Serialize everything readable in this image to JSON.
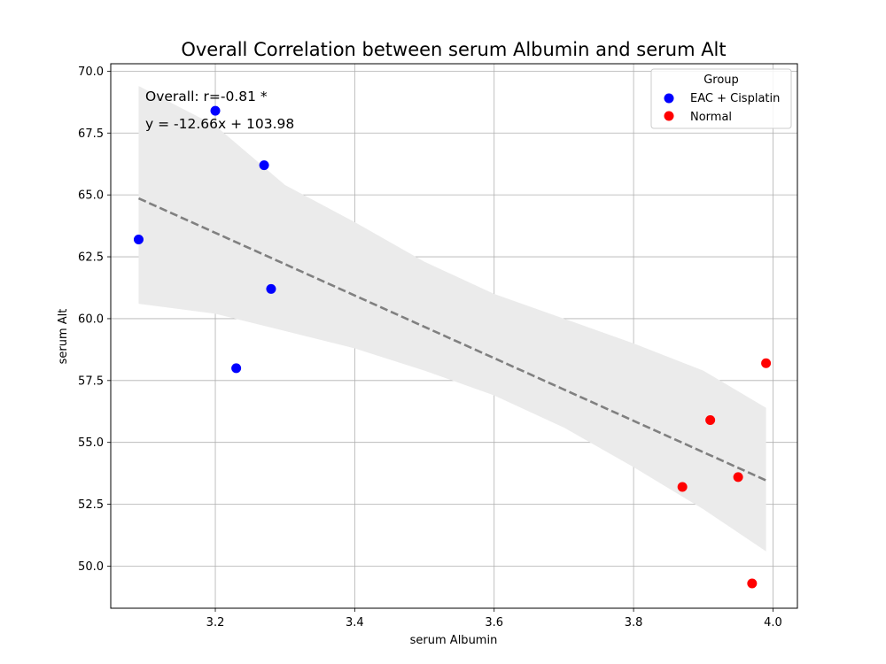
{
  "chart_data": {
    "type": "scatter",
    "title": "Overall Correlation between serum Albumin and serum Alt",
    "xlabel": "serum Albumin",
    "ylabel": "serum Alt",
    "xlim": [
      3.05,
      4.035
    ],
    "ylim": [
      48.3,
      70.3
    ],
    "xticks": [
      3.2,
      3.4,
      3.6,
      3.8,
      4.0
    ],
    "xtick_labels": [
      "3.2",
      "3.4",
      "3.6",
      "3.8",
      "4.0"
    ],
    "yticks": [
      50.0,
      52.5,
      55.0,
      57.5,
      60.0,
      62.5,
      65.0,
      67.5,
      70.0
    ],
    "ytick_labels": [
      "50.0",
      "52.5",
      "55.0",
      "57.5",
      "60.0",
      "62.5",
      "65.0",
      "67.5",
      "70.0"
    ],
    "grid": true,
    "legend": {
      "title": "Group",
      "placement": "top-right"
    },
    "series": [
      {
        "name": "EAC + Cisplatin",
        "color": "#0000ff",
        "points": [
          [
            3.09,
            63.2
          ],
          [
            3.2,
            68.4
          ],
          [
            3.23,
            58.0
          ],
          [
            3.27,
            66.2
          ],
          [
            3.28,
            61.2
          ]
        ]
      },
      {
        "name": "Normal",
        "color": "#ff0000",
        "points": [
          [
            3.87,
            53.2
          ],
          [
            3.91,
            55.9
          ],
          [
            3.95,
            53.6
          ],
          [
            3.97,
            49.3
          ],
          [
            3.99,
            58.2
          ]
        ]
      }
    ],
    "regression": {
      "slope": -12.66,
      "intercept": 103.98,
      "color": "#808080",
      "x_range": [
        3.09,
        3.99
      ],
      "ci_band": {
        "color": "#ebebeb",
        "x": [
          3.09,
          3.2,
          3.3,
          3.4,
          3.5,
          3.6,
          3.7,
          3.8,
          3.9,
          3.99
        ],
        "upper": [
          69.4,
          67.8,
          65.4,
          63.9,
          62.3,
          61.0,
          60.0,
          59.0,
          57.9,
          56.4
        ],
        "lower": [
          60.6,
          60.2,
          59.5,
          58.8,
          57.9,
          56.9,
          55.6,
          54.0,
          52.3,
          50.6
        ]
      }
    },
    "annotations": [
      "Overall: r=-0.81 *",
      "y = -12.66x + 103.98"
    ]
  }
}
